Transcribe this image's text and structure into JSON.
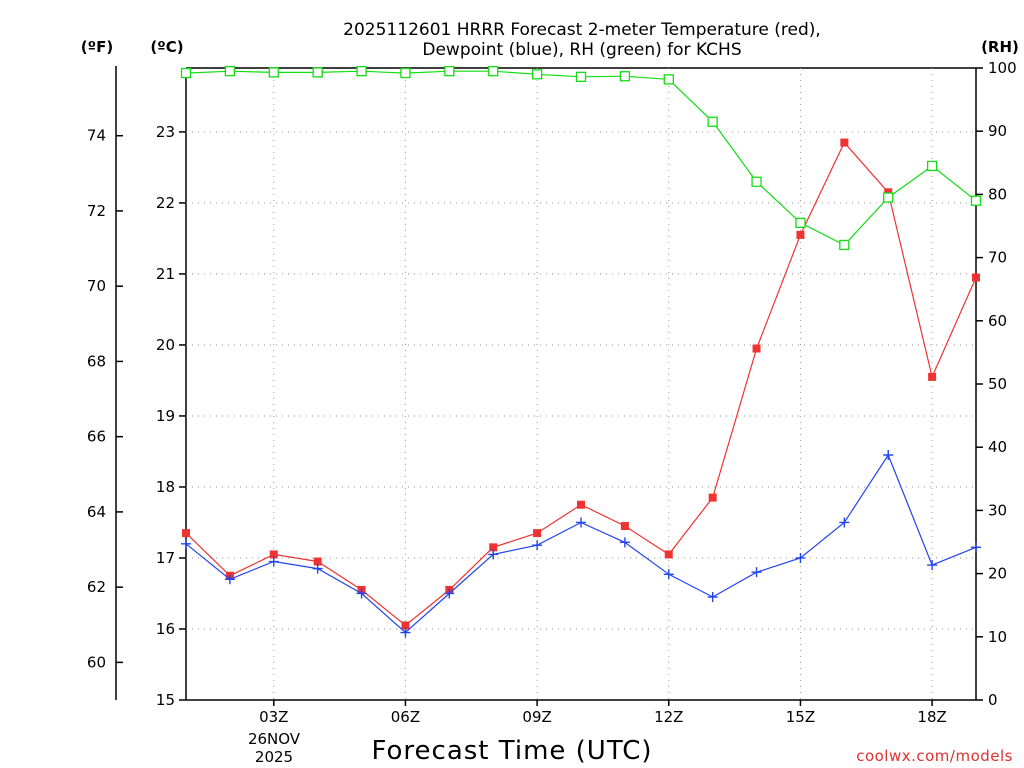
{
  "chart_data": {
    "type": "line",
    "title_lines": [
      "2025112601 HRRR Forecast 2-meter Temperature (red),",
      "Dewpoint (blue), RH (green) for KCHS"
    ],
    "xlabel": "Forecast Time (UTC)",
    "credit": "coolwx.com/models",
    "date_label_lines": [
      "26NOV",
      "2025"
    ],
    "x_hours": [
      1,
      2,
      3,
      4,
      5,
      6,
      7,
      8,
      9,
      10,
      11,
      12,
      13,
      14,
      15,
      16,
      17,
      18,
      19
    ],
    "xlim": [
      1,
      19
    ],
    "x_ticks": [
      {
        "hour": 3,
        "label": "03Z"
      },
      {
        "hour": 6,
        "label": "06Z"
      },
      {
        "hour": 9,
        "label": "09Z"
      },
      {
        "hour": 12,
        "label": "12Z"
      },
      {
        "hour": 15,
        "label": "15Z"
      },
      {
        "hour": 18,
        "label": "18Z"
      }
    ],
    "axes": {
      "fahrenheit": {
        "unit_label": "(ºF)",
        "range": [
          59,
          75.8
        ],
        "ticks": [
          "60",
          "62",
          "64",
          "66",
          "68",
          "70",
          "72",
          "74"
        ]
      },
      "celsius": {
        "unit_label": "(ºC)",
        "range": [
          15,
          23.9
        ],
        "ticks": [
          "15",
          "16",
          "17",
          "18",
          "19",
          "20",
          "21",
          "22",
          "23"
        ]
      },
      "rh": {
        "unit_label": "(RH)",
        "range": [
          0,
          100
        ],
        "ticks": [
          "0",
          "10",
          "20",
          "30",
          "40",
          "50",
          "60",
          "70",
          "80",
          "90",
          "100"
        ]
      }
    },
    "series": [
      {
        "name": "Temperature",
        "axis": "celsius",
        "color": "#ee3333",
        "marker": "filled-square",
        "values": [
          17.35,
          16.75,
          17.05,
          16.95,
          16.55,
          16.05,
          16.55,
          17.15,
          17.35,
          17.75,
          17.45,
          17.05,
          17.85,
          19.95,
          21.55,
          22.85,
          22.15,
          19.55,
          20.95
        ]
      },
      {
        "name": "Dewpoint",
        "axis": "celsius",
        "color": "#2244ee",
        "marker": "plus",
        "values": [
          17.2,
          16.7,
          16.95,
          16.85,
          16.5,
          15.95,
          16.5,
          17.05,
          17.18,
          17.5,
          17.22,
          16.77,
          16.45,
          16.8,
          17.0,
          17.5,
          18.45,
          16.9,
          17.15
        ]
      },
      {
        "name": "Relative Humidity",
        "axis": "rh",
        "color": "#11dd11",
        "marker": "open-square",
        "values": [
          99.2,
          99.5,
          99.3,
          99.3,
          99.5,
          99.2,
          99.5,
          99.5,
          99.0,
          98.6,
          98.7,
          98.2,
          91.5,
          82.0,
          75.5,
          72.0,
          79.5,
          84.5,
          79.0
        ]
      }
    ]
  }
}
